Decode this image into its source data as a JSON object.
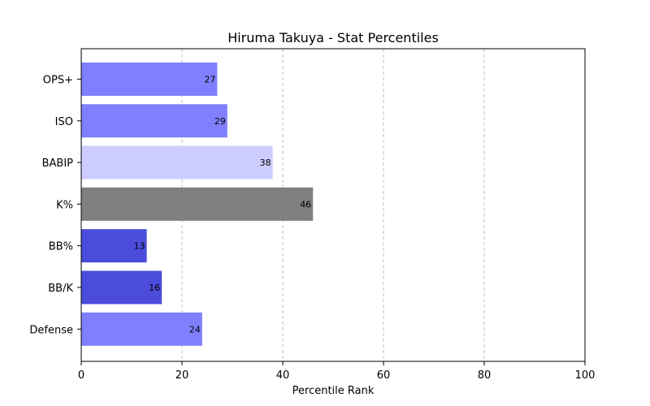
{
  "chart_data": {
    "type": "bar",
    "orientation": "horizontal",
    "title": "Hiruma Takuya - Stat Percentiles",
    "xlabel": "Percentile Rank",
    "ylabel": "",
    "xlim": [
      0,
      100
    ],
    "xticks": [
      0,
      20,
      40,
      60,
      80,
      100
    ],
    "grid": "x-dashed",
    "categories": [
      "OPS+",
      "ISO",
      "BABIP",
      "K%",
      "BB%",
      "BB/K",
      "Defense"
    ],
    "values": [
      27,
      29,
      38,
      46,
      13,
      16,
      24
    ],
    "colors": [
      "#8080ff",
      "#8080ff",
      "#ccccff",
      "#808080",
      "#4c4cdc",
      "#4c4cdc",
      "#8080ff"
    ],
    "value_labels": true
  }
}
